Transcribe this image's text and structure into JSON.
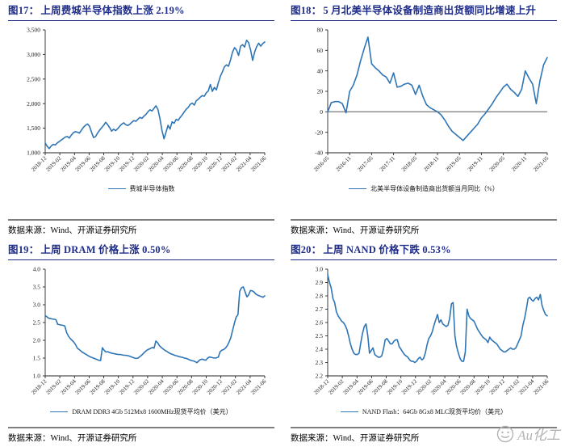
{
  "colors": {
    "title_navy": "#1F2D8A",
    "line_blue": "#2E75B6",
    "rule_gray": "#7F7F7F",
    "axis": "#262626",
    "watermark_gray": "#B3B3B3"
  },
  "watermark": {
    "icon": "smiley-face-icon",
    "text": "Au化工"
  },
  "chart_data": [
    {
      "type": "line",
      "figure_label": "图17：",
      "title": "上周费城半导体指数上涨 2.19%",
      "legend": [
        "费城半导体指数"
      ],
      "source": "数据来源：Wind、开源证券研究所",
      "ylim": [
        1000,
        3500
      ],
      "yticks": [
        1000,
        1500,
        2000,
        2500,
        3000,
        3500
      ],
      "ytick_labels": [
        "1,000",
        "1,500",
        "2,000",
        "2,500",
        "3,000",
        "3,500"
      ],
      "x_labels": [
        "2018-12",
        "2019-02",
        "2019-04",
        "2019-06",
        "2019-08",
        "2019-10",
        "2019-12",
        "2020-02",
        "2020-04",
        "2020-06",
        "2020-08",
        "2020-10",
        "2020-12",
        "2021-02",
        "2021-04",
        "2021-06"
      ],
      "zero_line": false,
      "values": [
        1200,
        1130,
        1085,
        1140,
        1170,
        1160,
        1200,
        1230,
        1260,
        1290,
        1320,
        1330,
        1300,
        1360,
        1410,
        1430,
        1420,
        1400,
        1460,
        1520,
        1560,
        1585,
        1540,
        1420,
        1310,
        1330,
        1400,
        1460,
        1510,
        1560,
        1620,
        1570,
        1510,
        1440,
        1480,
        1450,
        1490,
        1540,
        1580,
        1610,
        1570,
        1555,
        1580,
        1620,
        1655,
        1640,
        1680,
        1720,
        1700,
        1745,
        1780,
        1835,
        1875,
        1850,
        1905,
        1955,
        1880,
        1690,
        1450,
        1285,
        1420,
        1560,
        1480,
        1630,
        1600,
        1680,
        1660,
        1720,
        1770,
        1830,
        1885,
        1925,
        1985,
        2010,
        1970,
        2060,
        2090,
        2130,
        2165,
        2150,
        2220,
        2260,
        2390,
        2250,
        2330,
        2280,
        2430,
        2560,
        2650,
        2750,
        2790,
        2760,
        2890,
        3050,
        3140,
        3090,
        2980,
        3170,
        3200,
        3150,
        3290,
        3240,
        3090,
        2880,
        3050,
        3160,
        3230,
        3170,
        3220,
        3255
      ]
    },
    {
      "type": "line",
      "figure_label": "图18：",
      "title": "5 月北美半导体设备制造商出货额同比增速上升",
      "legend": [
        "北美半导体设备制造商出货额当月同比（%）"
      ],
      "source": "数据来源：Wind、开源证券研究所",
      "ylim": [
        -40,
        80
      ],
      "yticks": [
        -40,
        -20,
        0,
        20,
        40,
        60,
        80
      ],
      "ytick_labels": [
        "-40",
        "-20",
        "0",
        "20",
        "40",
        "60",
        "80"
      ],
      "x_labels": [
        "2016-05",
        "2016-11",
        "2017-05",
        "2017-11",
        "2018-05",
        "2018-11",
        "2019-05",
        "2019-11",
        "2020-05",
        "2020-11",
        "2021-05"
      ],
      "zero_line": true,
      "values": [
        0,
        9,
        10,
        10,
        8,
        -1,
        20,
        26,
        36,
        50,
        62,
        73,
        47,
        43,
        40,
        36,
        34,
        28,
        38,
        24,
        25,
        27,
        28,
        26,
        17,
        26,
        15,
        7,
        4,
        2,
        0,
        -3,
        -8,
        -14,
        -19,
        -22,
        -25,
        -28,
        -24,
        -20,
        -16,
        -12,
        -6,
        -2,
        3,
        8,
        14,
        19,
        24,
        27,
        22,
        19,
        15,
        22,
        40,
        33,
        27,
        8,
        30,
        46,
        53
      ]
    },
    {
      "type": "line",
      "figure_label": "图19：",
      "title": "上周 DRAM 价格上涨 0.50%",
      "legend": [
        "DRAM DDR3 4Gb 512Mx8 1600MHz现货平均价（美元）"
      ],
      "source": "数据来源：Wind、开源证券研究所",
      "ylim": [
        1.0,
        4.0
      ],
      "yticks": [
        1.0,
        1.5,
        2.0,
        2.5,
        3.0,
        3.5,
        4.0
      ],
      "ytick_labels": [
        "1.0",
        "1.5",
        "2.0",
        "2.5",
        "3.0",
        "3.5",
        "4.0"
      ],
      "x_labels": [
        "2018-12",
        "2019-02",
        "2019-04",
        "2019-06",
        "2019-08",
        "2019-10",
        "2019-12",
        "2020-02",
        "2020-04",
        "2020-06",
        "2020-08",
        "2020-10",
        "2020-12",
        "2021-02",
        "2021-04",
        "2021-06"
      ],
      "zero_line": false,
      "values": [
        2.7,
        2.66,
        2.62,
        2.61,
        2.6,
        2.59,
        2.58,
        2.45,
        2.44,
        2.43,
        2.42,
        2.4,
        2.22,
        2.12,
        2.05,
        2.0,
        1.95,
        1.88,
        1.78,
        1.74,
        1.7,
        1.66,
        1.63,
        1.6,
        1.57,
        1.54,
        1.52,
        1.5,
        1.48,
        1.46,
        1.44,
        1.43,
        1.79,
        1.72,
        1.67,
        1.68,
        1.66,
        1.64,
        1.63,
        1.62,
        1.61,
        1.6,
        1.6,
        1.59,
        1.58,
        1.58,
        1.57,
        1.56,
        1.54,
        1.52,
        1.5,
        1.49,
        1.5,
        1.54,
        1.58,
        1.63,
        1.68,
        1.72,
        1.75,
        1.77,
        1.8,
        1.78,
        1.98,
        1.93,
        1.85,
        1.8,
        1.76,
        1.72,
        1.69,
        1.66,
        1.63,
        1.61,
        1.59,
        1.57,
        1.56,
        1.54,
        1.53,
        1.52,
        1.5,
        1.49,
        1.47,
        1.45,
        1.43,
        1.42,
        1.4,
        1.37,
        1.42,
        1.46,
        1.47,
        1.45,
        1.44,
        1.5,
        1.53,
        1.52,
        1.51,
        1.5,
        1.51,
        1.53,
        1.68,
        1.72,
        1.74,
        1.78,
        1.85,
        1.95,
        2.08,
        2.28,
        2.48,
        2.65,
        2.72,
        3.38,
        3.48,
        3.5,
        3.36,
        3.22,
        3.28,
        3.4,
        3.39,
        3.36,
        3.3,
        3.27,
        3.25,
        3.23,
        3.21,
        3.25
      ]
    },
    {
      "type": "line",
      "figure_label": "图20：",
      "title": "上周 NAND 价格下跌 0.53%",
      "legend": [
        "NAND Flash：64Gb 8Gx8 MLC现货平均价（美元）"
      ],
      "source": "数据来源：Wind、开源证券研究所",
      "ylim": [
        2.2,
        3.0
      ],
      "yticks": [
        2.2,
        2.3,
        2.4,
        2.5,
        2.6,
        2.7,
        2.8,
        2.9,
        3.0
      ],
      "ytick_labels": [
        "2.2",
        "2.3",
        "2.4",
        "2.5",
        "2.6",
        "2.7",
        "2.8",
        "2.9",
        "3.0"
      ],
      "x_labels": [
        "2018-12",
        "2019-02",
        "2019-04",
        "2019-06",
        "2019-08",
        "2019-10",
        "2019-12",
        "2020-02",
        "2020-04",
        "2020-06",
        "2020-08",
        "2020-10",
        "2020-12",
        "2021-02",
        "2021-04",
        "2021-06"
      ],
      "zero_line": false,
      "values": [
        2.96,
        2.9,
        2.86,
        2.78,
        2.75,
        2.68,
        2.65,
        2.63,
        2.61,
        2.6,
        2.58,
        2.55,
        2.5,
        2.44,
        2.4,
        2.37,
        2.36,
        2.36,
        2.37,
        2.45,
        2.52,
        2.57,
        2.59,
        2.5,
        2.37,
        2.39,
        2.41,
        2.36,
        2.35,
        2.34,
        2.34,
        2.35,
        2.4,
        2.47,
        2.48,
        2.46,
        2.44,
        2.44,
        2.46,
        2.47,
        2.47,
        2.42,
        2.4,
        2.38,
        2.36,
        2.35,
        2.34,
        2.32,
        2.31,
        2.31,
        2.3,
        2.31,
        2.33,
        2.34,
        2.32,
        2.33,
        2.37,
        2.43,
        2.48,
        2.5,
        2.53,
        2.58,
        2.62,
        2.66,
        2.6,
        2.62,
        2.59,
        2.58,
        2.57,
        2.58,
        2.63,
        2.74,
        2.75,
        2.5,
        2.42,
        2.37,
        2.33,
        2.31,
        2.31,
        2.38,
        2.7,
        2.65,
        2.63,
        2.62,
        2.61,
        2.58,
        2.55,
        2.53,
        2.51,
        2.49,
        2.48,
        2.47,
        2.45,
        2.49,
        2.47,
        2.46,
        2.45,
        2.44,
        2.42,
        2.4,
        2.39,
        2.38,
        2.38,
        2.39,
        2.4,
        2.41,
        2.4,
        2.4,
        2.41,
        2.44,
        2.47,
        2.5,
        2.58,
        2.63,
        2.7,
        2.78,
        2.79,
        2.77,
        2.76,
        2.78,
        2.79,
        2.77,
        2.81,
        2.73,
        2.69,
        2.66,
        2.65
      ]
    }
  ]
}
